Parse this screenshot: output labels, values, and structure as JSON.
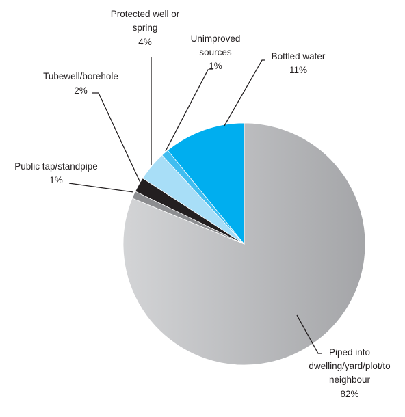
{
  "chart_data": {
    "type": "pie",
    "title": "",
    "start": "12 o'clock",
    "direction": "clockwise",
    "slices": [
      {
        "label": "Piped into dwelling/yard/plot/to neighbour",
        "value": 82,
        "display": "82%",
        "color_light": "#a4a5a8",
        "color_dark": "#d3d4d6"
      },
      {
        "label": "Public tap/standpipe",
        "value": 1,
        "display": "1%",
        "color_light": "#8c8d90",
        "color_dark": "#8c8d90"
      },
      {
        "label": "Tubewell/borehole",
        "value": 2,
        "display": "2%",
        "color_light": "#231f20",
        "color_dark": "#231f20"
      },
      {
        "label": "Protected well or spring",
        "value": 4,
        "display": "4%",
        "color_light": "#a8def7",
        "color_dark": "#a8def7"
      },
      {
        "label": "Unimproved sources",
        "value": 1,
        "display": "1%",
        "color_light": "#40bdf0",
        "color_dark": "#40bdf0"
      },
      {
        "label": "Bottled water",
        "value": 11,
        "display": "11%",
        "color_light": "#00aeef",
        "color_dark": "#00aeef"
      }
    ]
  },
  "labels": {
    "piped": {
      "lines": [
        "Piped into",
        "dwelling/yard/plot/to",
        "neighbour"
      ],
      "pct": "82%"
    },
    "public_tap": {
      "lines": [
        "Public tap/standpipe"
      ],
      "pct": "1%"
    },
    "tubewell": {
      "lines": [
        "Tubewell/borehole"
      ],
      "pct": "2%"
    },
    "protected": {
      "lines": [
        "Protected well or",
        "spring"
      ],
      "pct": "4%"
    },
    "unimproved": {
      "lines": [
        "Unimproved",
        "sources"
      ],
      "pct": "1%"
    },
    "bottled": {
      "lines": [
        "Bottled water"
      ],
      "pct": "11%"
    }
  }
}
